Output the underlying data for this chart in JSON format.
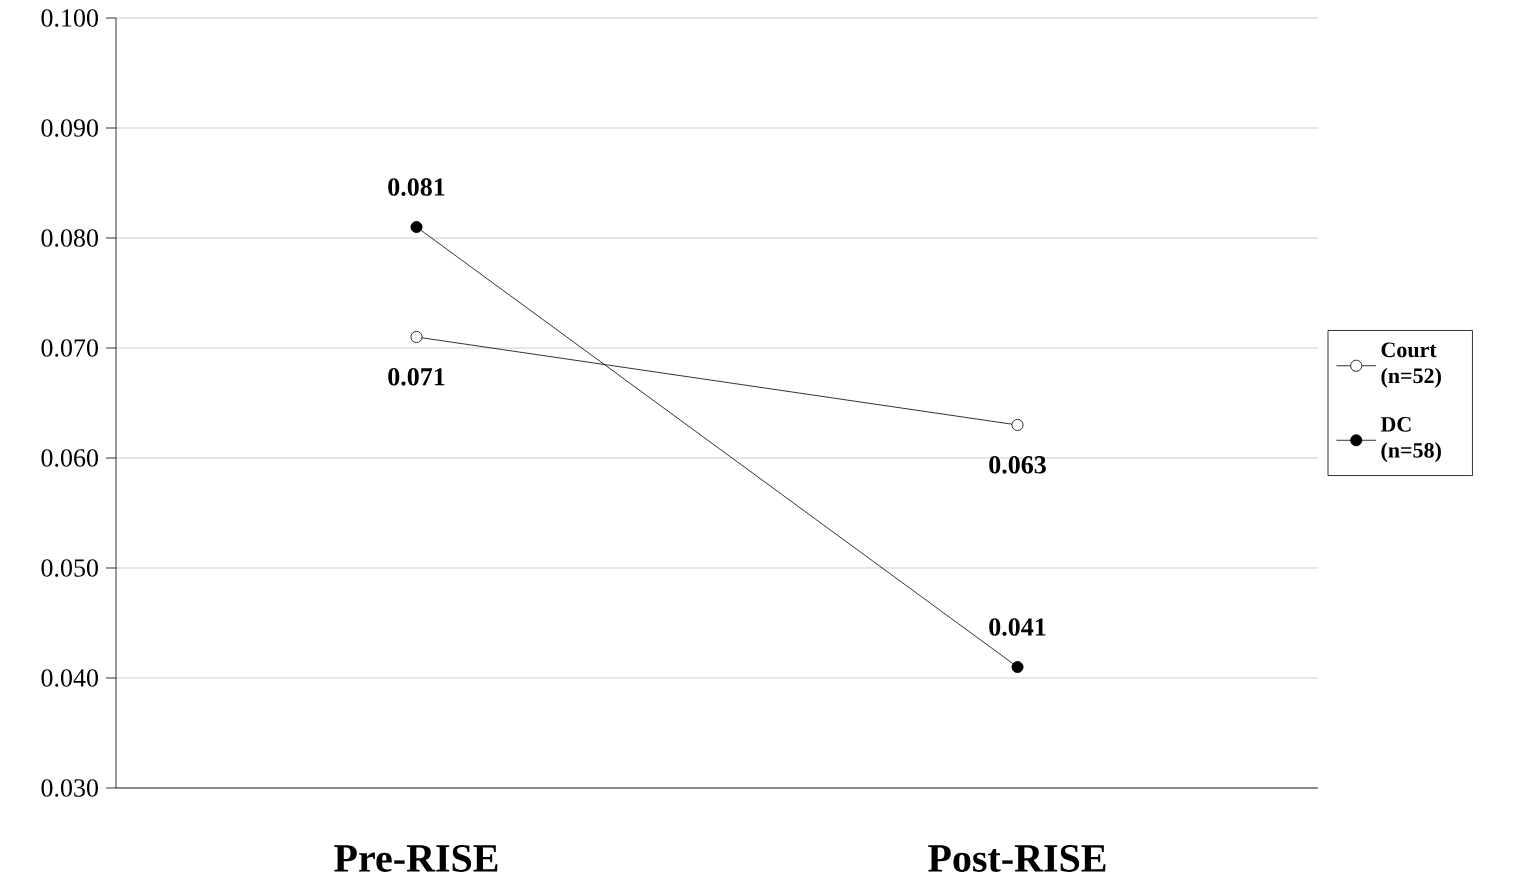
{
  "chart_data": {
    "type": "line",
    "categories": [
      "Pre-RISE",
      "Post-RISE"
    ],
    "series": [
      {
        "name": "Court (n=52)",
        "color": "#000000",
        "marker": "circle",
        "values": [
          0.071,
          0.063
        ]
      },
      {
        "name": "DC (n=58)",
        "color": "#000000",
        "marker": "circle",
        "values": [
          0.081,
          0.041
        ]
      }
    ],
    "ylim": [
      0.03,
      0.1
    ],
    "yticks": [
      {
        "value": 0.03,
        "label": "0.030"
      },
      {
        "value": 0.04,
        "label": "0.040"
      },
      {
        "value": 0.05,
        "label": "0.050"
      },
      {
        "value": 0.06,
        "label": "0.060"
      },
      {
        "value": 0.07,
        "label": "0.070"
      },
      {
        "value": 0.08,
        "label": "0.080"
      },
      {
        "value": 0.09,
        "label": "0.090"
      },
      {
        "value": 0.1,
        "label": "0.100"
      }
    ],
    "grid": "y",
    "legend": "right",
    "data_labels": true,
    "line_style": "solid"
  }
}
